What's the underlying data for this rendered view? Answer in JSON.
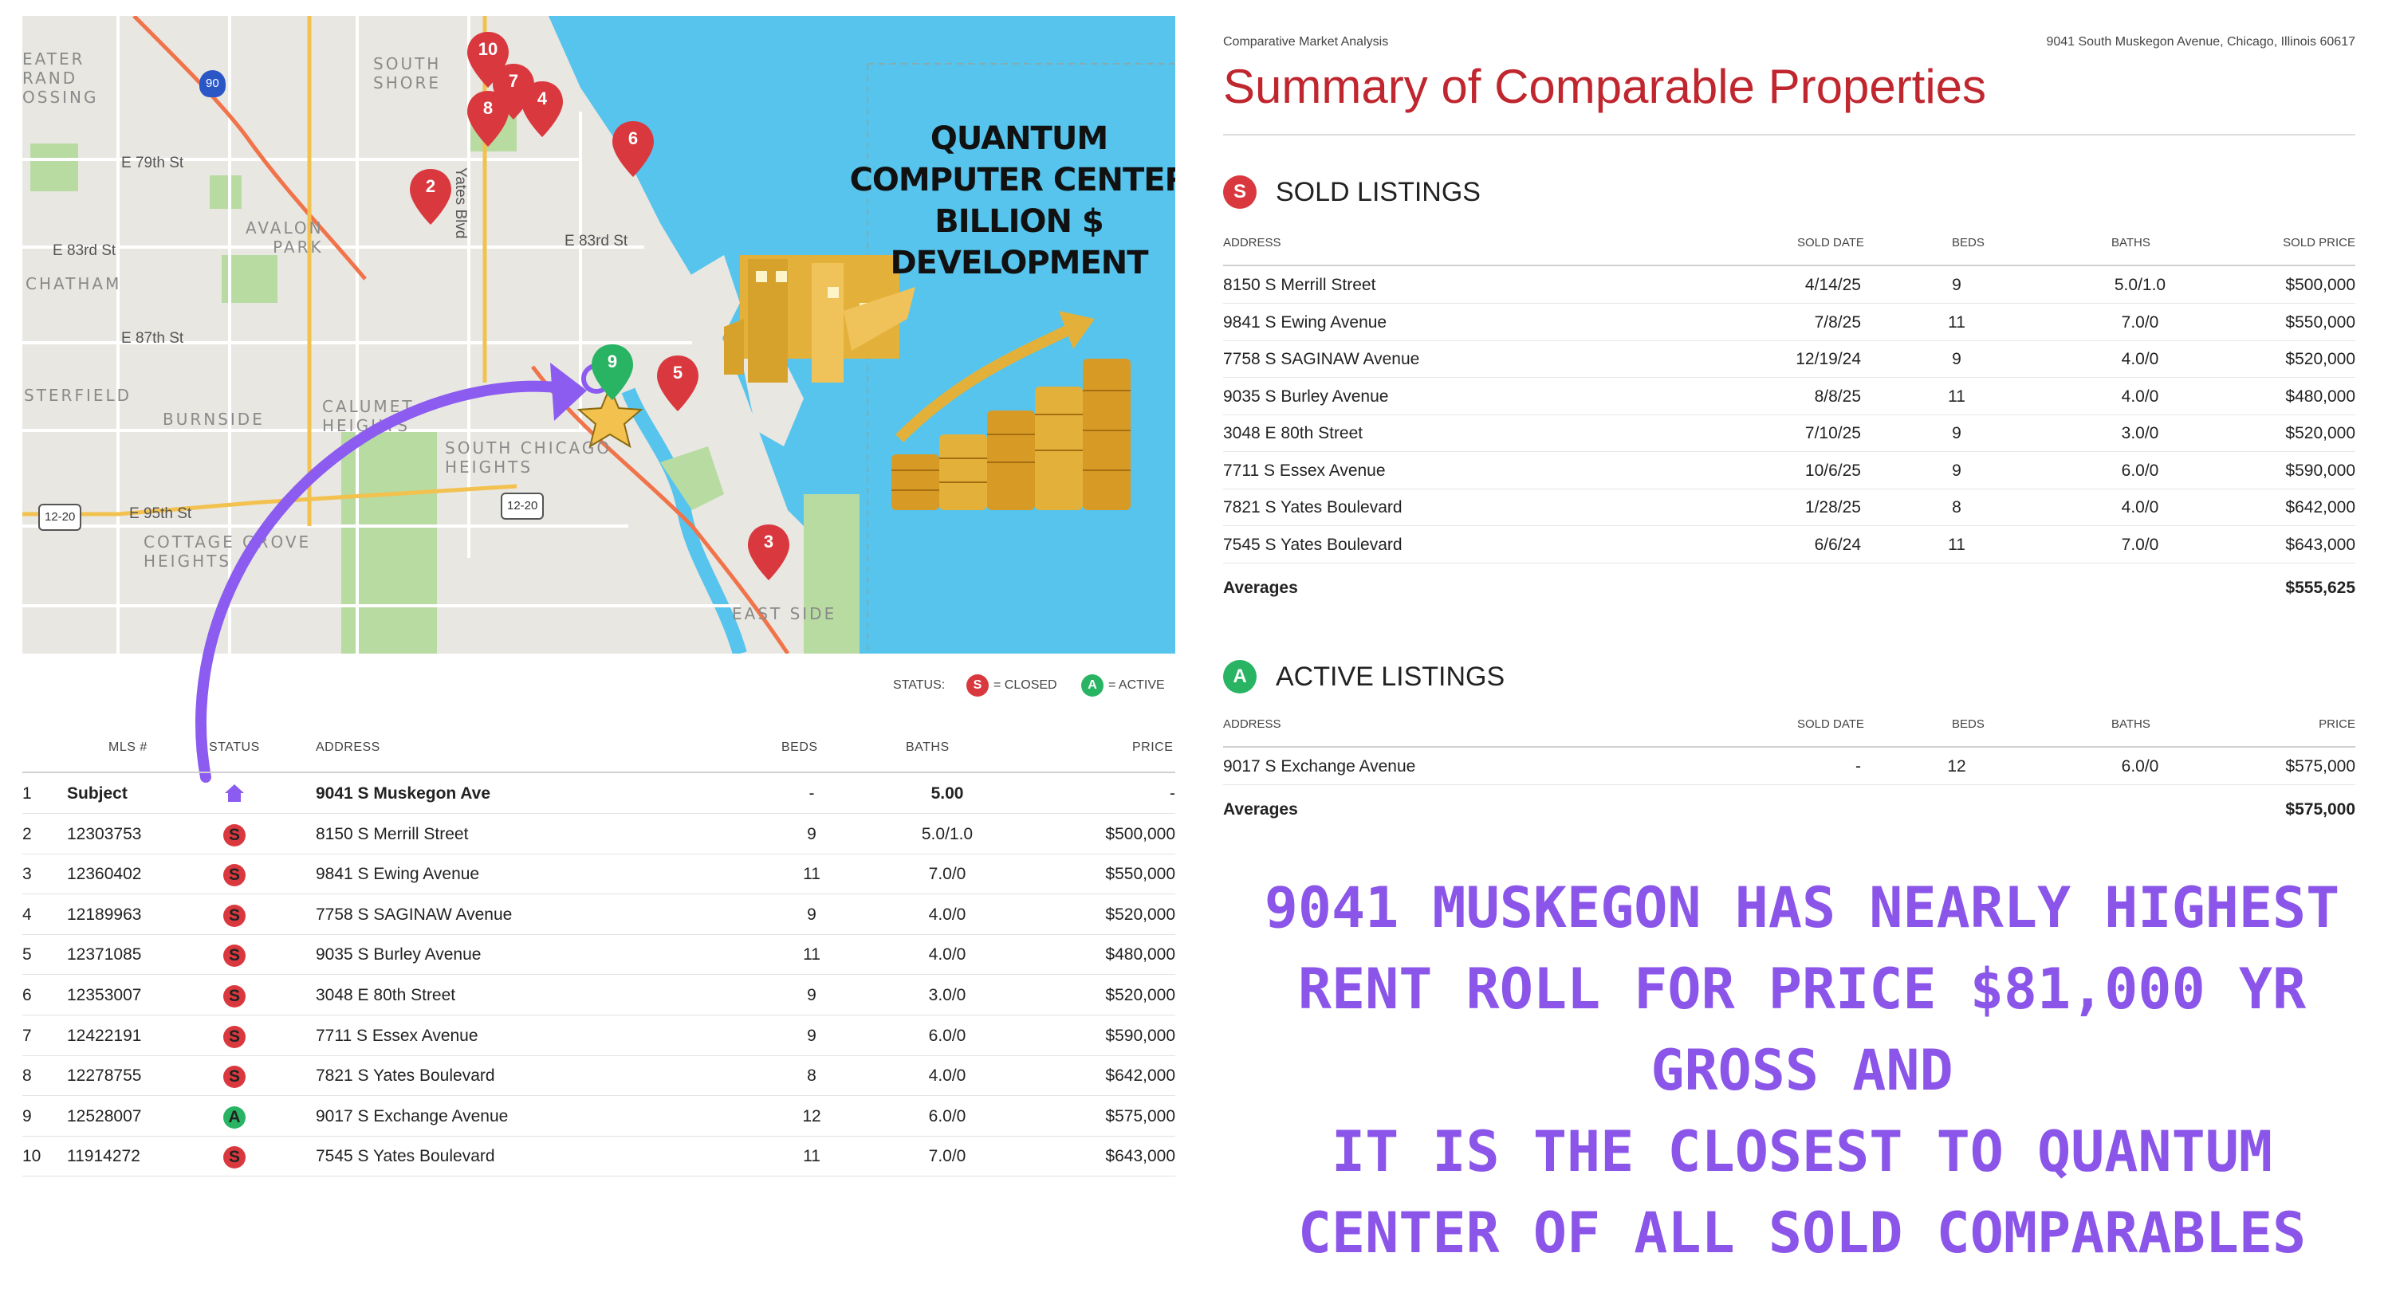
{
  "map": {
    "headline": [
      "QUANTUM",
      "COMPUTER CENTER",
      "BILLION $",
      "DEVELOPMENT"
    ],
    "area_labels": [
      "EATER\nRAND\nOSSING",
      "SOUTH\nSHORE",
      "AVALON\nPARK",
      "CHATHAM",
      "STERFIELD",
      "BURNSIDE",
      "CALUMET\nHEIGHTS",
      "SOUTH CHICAGO\nHEIGHTS",
      "COTTAGE GROVE\nHEIGHTS",
      "EAST SIDE"
    ],
    "streets": [
      "E 79th St",
      "E 83rd St",
      "E 83rd St",
      "E 87th St",
      "E 95th St",
      "Yates Blvd"
    ],
    "shields": [
      "90",
      "12-20",
      "12-20"
    ],
    "pins": [
      "10",
      "7",
      "8",
      "4",
      "6",
      "2",
      "9",
      "5",
      "3"
    ],
    "colors": {
      "water": "#56c4ec",
      "land": "#e9e7e2",
      "park": "#b8dba2",
      "pin_closed": "#d9393e",
      "pin_active": "#28b463",
      "arrow": "#8c5cf0",
      "gold": "#e3b13a"
    }
  },
  "legend": {
    "status_label": "STATUS:",
    "closed_badge": "S",
    "closed_label": "= CLOSED",
    "active_badge": "A",
    "active_label": "= ACTIVE"
  },
  "left_table": {
    "headers": {
      "mls": "MLS #",
      "status": "STATUS",
      "address": "ADDRESS",
      "beds": "BEDS",
      "baths": "BATHS",
      "price": "PRICE"
    },
    "rows": [
      {
        "n": "1",
        "mls": "Subject",
        "status": "subject",
        "address": "9041 S Muskegon Ave",
        "beds": "-",
        "baths": "5.00",
        "price": "-"
      },
      {
        "n": "2",
        "mls": "12303753",
        "status": "S",
        "address": "8150 S Merrill Street",
        "beds": "9",
        "baths": "5.0/1.0",
        "price": "$500,000"
      },
      {
        "n": "3",
        "mls": "12360402",
        "status": "S",
        "address": "9841 S Ewing Avenue",
        "beds": "11",
        "baths": "7.0/0",
        "price": "$550,000"
      },
      {
        "n": "4",
        "mls": "12189963",
        "status": "S",
        "address": "7758 S SAGINAW Avenue",
        "beds": "9",
        "baths": "4.0/0",
        "price": "$520,000"
      },
      {
        "n": "5",
        "mls": "12371085",
        "status": "S",
        "address": "9035 S Burley Avenue",
        "beds": "11",
        "baths": "4.0/0",
        "price": "$480,000"
      },
      {
        "n": "6",
        "mls": "12353007",
        "status": "S",
        "address": "3048 E 80th Street",
        "beds": "9",
        "baths": "3.0/0",
        "price": "$520,000"
      },
      {
        "n": "7",
        "mls": "12422191",
        "status": "S",
        "address": "7711 S Essex Avenue",
        "beds": "9",
        "baths": "6.0/0",
        "price": "$590,000"
      },
      {
        "n": "8",
        "mls": "12278755",
        "status": "S",
        "address": "7821 S Yates Boulevard",
        "beds": "8",
        "baths": "4.0/0",
        "price": "$642,000"
      },
      {
        "n": "9",
        "mls": "12528007",
        "status": "A",
        "address": "9017 S Exchange Avenue",
        "beds": "12",
        "baths": "6.0/0",
        "price": "$575,000"
      },
      {
        "n": "10",
        "mls": "11914272",
        "status": "S",
        "address": "7545 S Yates Boulevard",
        "beds": "11",
        "baths": "7.0/0",
        "price": "$643,000"
      }
    ]
  },
  "report": {
    "kicker": "Comparative Market Analysis",
    "address": "9041 South Muskegon Avenue, Chicago, Illinois 60617",
    "title": "Summary of Comparable Properties",
    "sold": {
      "badge": "S",
      "title": "SOLD LISTINGS",
      "headers": {
        "address": "ADDRESS",
        "date": "SOLD DATE",
        "beds": "BEDS",
        "baths": "BATHS",
        "price": "SOLD PRICE"
      },
      "rows": [
        {
          "address": "8150 S Merrill Street",
          "date": "4/14/25",
          "beds": "9",
          "baths": "5.0/1.0",
          "price": "$500,000"
        },
        {
          "address": "9841 S Ewing Avenue",
          "date": "7/8/25",
          "beds": "11",
          "baths": "7.0/0",
          "price": "$550,000"
        },
        {
          "address": "7758 S SAGINAW Avenue",
          "date": "12/19/24",
          "beds": "9",
          "baths": "4.0/0",
          "price": "$520,000"
        },
        {
          "address": "9035 S Burley Avenue",
          "date": "8/8/25",
          "beds": "11",
          "baths": "4.0/0",
          "price": "$480,000"
        },
        {
          "address": "3048 E 80th Street",
          "date": "7/10/25",
          "beds": "9",
          "baths": "3.0/0",
          "price": "$520,000"
        },
        {
          "address": "7711 S Essex Avenue",
          "date": "10/6/25",
          "beds": "9",
          "baths": "6.0/0",
          "price": "$590,000"
        },
        {
          "address": "7821 S Yates Boulevard",
          "date": "1/28/25",
          "beds": "8",
          "baths": "4.0/0",
          "price": "$642,000"
        },
        {
          "address": "7545 S Yates Boulevard",
          "date": "6/6/24",
          "beds": "11",
          "baths": "7.0/0",
          "price": "$643,000"
        }
      ],
      "avg_label": "Averages",
      "avg_value": "$555,625"
    },
    "active": {
      "badge": "A",
      "title": "ACTIVE LISTINGS",
      "headers": {
        "address": "ADDRESS",
        "date": "SOLD DATE",
        "beds": "BEDS",
        "baths": "BATHS",
        "price": "PRICE"
      },
      "rows": [
        {
          "address": "9017 S Exchange Avenue",
          "date": "-",
          "beds": "12",
          "baths": "6.0/0",
          "price": "$575,000"
        }
      ],
      "avg_label": "Averages",
      "avg_value": "$575,000"
    }
  },
  "statement": [
    "9041 MUSKEGON HAS NEARLY HIGHEST",
    "RENT ROLL FOR PRICE $81,000 YR",
    "GROSS AND",
    "IT IS THE CLOSEST TO QUANTUM",
    "CENTER OF ALL SOLD COMPARABLES"
  ]
}
